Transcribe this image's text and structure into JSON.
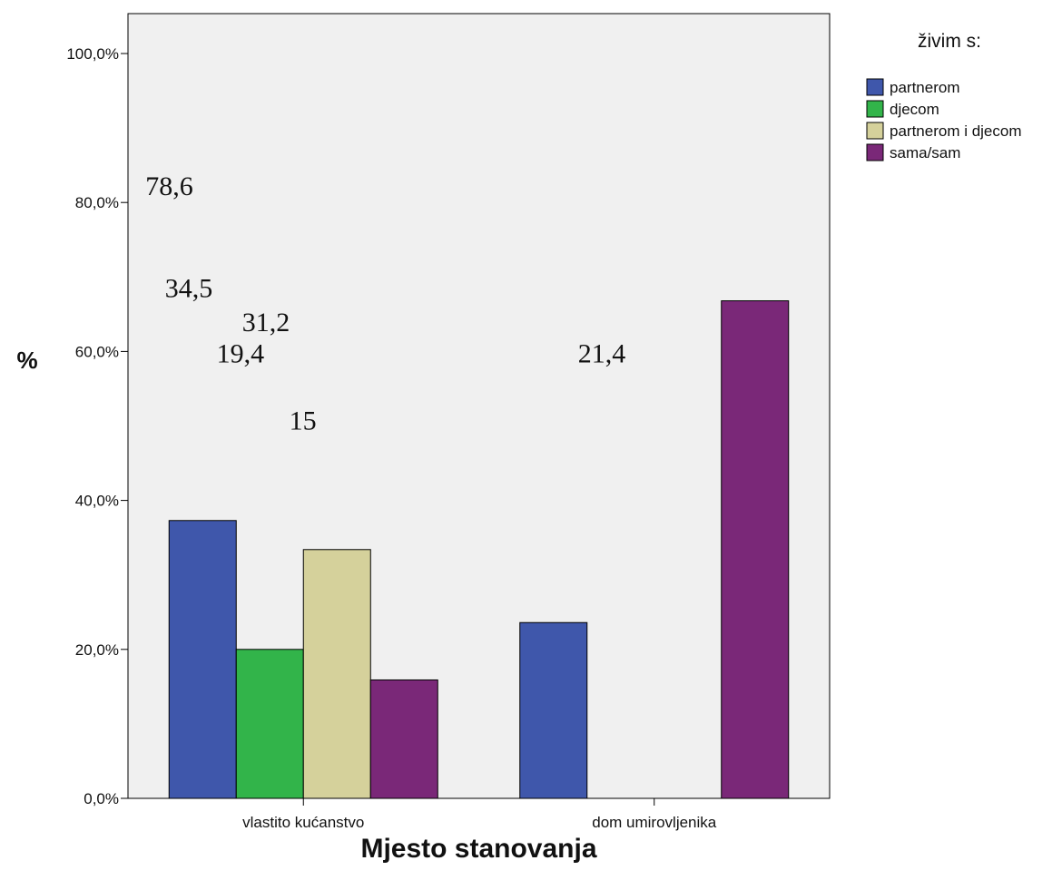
{
  "chart_data": {
    "type": "bar",
    "title": "",
    "xlabel": "Mjesto stanovanja",
    "ylabel": "%",
    "ylim": [
      0,
      100
    ],
    "y_ticks": [
      "0,0%",
      "20,0%",
      "40,0%",
      "60,0%",
      "80,0%",
      "100,0%"
    ],
    "grid": false,
    "legend_position": "top-right",
    "legend_title": "živim s:",
    "categories": [
      "vlastito kućanstvo",
      "dom umirovljenika"
    ],
    "series": [
      {
        "name": "partnerom",
        "color": "#3f57ab",
        "values": [
          37.3,
          23.6
        ]
      },
      {
        "name": "djecom",
        "color": "#32b44a",
        "values": [
          20.0,
          0
        ]
      },
      {
        "name": "partnerom i djecom",
        "color": "#d5d19b",
        "values": [
          33.4,
          0
        ]
      },
      {
        "name": "sama/sam",
        "color": "#7a2878",
        "values": [
          15.9,
          66.8
        ]
      }
    ],
    "annotations": [
      {
        "text": "78,6",
        "y": 81.0,
        "x": 0.26
      },
      {
        "text": "34,5",
        "y": 67.3,
        "x": 0.55
      },
      {
        "text": "31,2",
        "y": 62.7,
        "x": 1.7
      },
      {
        "text": "19,4",
        "y": 58.5,
        "x": 1.32
      },
      {
        "text": "21,4",
        "y": 58.5,
        "x": 6.7
      },
      {
        "text": "15",
        "y": 49.5,
        "x": 2.4
      }
    ]
  },
  "colors": {
    "plot_background": "#f0f0f0",
    "axis": "#000000"
  }
}
